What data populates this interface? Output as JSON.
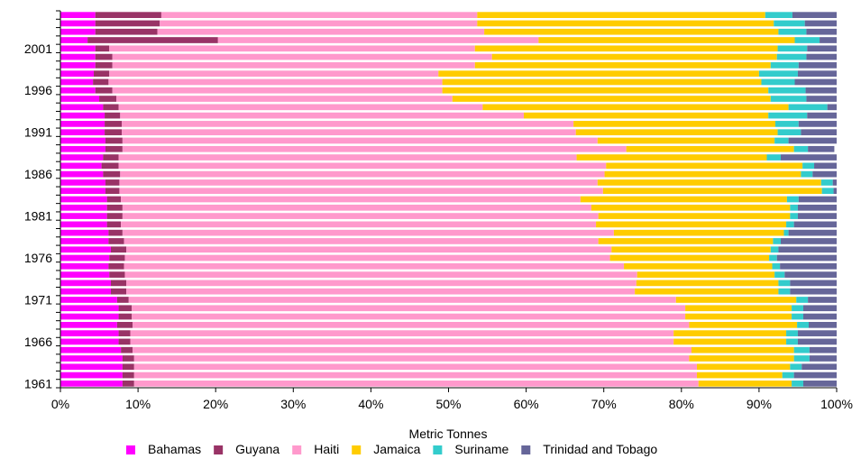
{
  "chart_data": {
    "type": "bar",
    "orientation": "horizontal",
    "stacked": "percent",
    "title": "",
    "xlabel": "Metric Tonnes",
    "ylabel": "",
    "xlim": [
      0,
      100
    ],
    "x_tick_labels": [
      "0%",
      "10%",
      "20%",
      "30%",
      "40%",
      "50%",
      "60%",
      "70%",
      "80%",
      "90%",
      "100%"
    ],
    "y_tick_labels": [
      "1961",
      "1966",
      "1971",
      "1976",
      "1981",
      "1986",
      "1991",
      "1996",
      "2001"
    ],
    "grid": false,
    "legend_position": "bottom",
    "categories": [
      "1961",
      "1962",
      "1963",
      "1964",
      "1965",
      "1966",
      "1967",
      "1968",
      "1969",
      "1970",
      "1971",
      "1972",
      "1973",
      "1974",
      "1975",
      "1976",
      "1977",
      "1978",
      "1979",
      "1980",
      "1981",
      "1982",
      "1983",
      "1984",
      "1985",
      "1986",
      "1987",
      "1988",
      "1989",
      "1990",
      "1991",
      "1992",
      "1993",
      "1994",
      "1995",
      "1996",
      "1997",
      "1998",
      "1999",
      "2000",
      "2001",
      "2002",
      "2003",
      "2004",
      "2005"
    ],
    "series": [
      {
        "name": "Bahamas",
        "color": "#ff00ff",
        "values": [
          8.0,
          8.0,
          8.0,
          8.0,
          7.8,
          7.5,
          7.5,
          7.3,
          7.5,
          7.5,
          7.3,
          6.5,
          6.5,
          6.3,
          6.2,
          6.3,
          6.5,
          6.2,
          6.2,
          6.0,
          6.0,
          6.0,
          6.0,
          5.8,
          5.8,
          5.5,
          5.3,
          5.5,
          5.8,
          5.8,
          5.7,
          5.7,
          5.7,
          5.5,
          5.0,
          4.5,
          4.2,
          4.3,
          4.5,
          4.5,
          4.5,
          3.5,
          4.5,
          4.5,
          4.5
        ]
      },
      {
        "name": "Guyana",
        "color": "#993366",
        "values": [
          1.5,
          1.5,
          1.5,
          1.5,
          1.5,
          1.5,
          1.5,
          2.0,
          1.7,
          1.7,
          1.5,
          2.0,
          2.0,
          2.0,
          2.0,
          2.0,
          2.0,
          2.0,
          1.8,
          1.8,
          2.0,
          2.0,
          1.8,
          1.8,
          1.8,
          2.2,
          2.2,
          2.0,
          2.2,
          2.2,
          2.2,
          2.2,
          2.0,
          2.0,
          2.2,
          2.2,
          2.0,
          2.0,
          2.2,
          2.2,
          1.8,
          16.8,
          8.0,
          8.3,
          8.5
        ]
      },
      {
        "name": "Haiti",
        "color": "#ff99cc",
        "values": [
          72.7,
          72.5,
          72.5,
          71.5,
          72.0,
          70.0,
          70.0,
          71.7,
          71.3,
          71.3,
          70.5,
          65.5,
          65.7,
          66.0,
          64.4,
          62.5,
          62.5,
          61.1,
          63.3,
          61.2,
          61.3,
          60.4,
          59.2,
          62.3,
          61.6,
          62.4,
          62.8,
          59.0,
          64.9,
          61.2,
          58.5,
          58.2,
          52.0,
          46.9,
          43.3,
          42.5,
          43.0,
          42.4,
          46.7,
          48.9,
          47.1,
          41.3,
          42.1,
          40.9,
          40.7
        ]
      },
      {
        "name": "Jamaica",
        "color": "#ffcc00",
        "values": [
          12.0,
          11.0,
          12.0,
          13.5,
          13.2,
          14.5,
          14.5,
          13.9,
          13.7,
          13.7,
          15.5,
          18.5,
          18.3,
          17.7,
          19.1,
          20.5,
          20.5,
          22.5,
          21.9,
          24.5,
          24.7,
          25.6,
          26.6,
          28.2,
          28.8,
          25.3,
          25.3,
          24.5,
          21.6,
          22.8,
          26.0,
          26.0,
          31.5,
          39.4,
          41.0,
          42.0,
          41.1,
          41.3,
          38.1,
          36.7,
          39.0,
          33.0,
          37.9,
          38.2,
          37.1
        ]
      },
      {
        "name": "Suriname",
        "color": "#33cccc",
        "values": [
          1.5,
          1.5,
          1.5,
          2.0,
          2.0,
          1.5,
          1.5,
          1.5,
          1.5,
          1.5,
          1.5,
          1.5,
          1.5,
          1.3,
          1.0,
          1.0,
          1.0,
          1.0,
          0.6,
          1.0,
          1.0,
          1.0,
          1.5,
          1.5,
          1.5,
          1.5,
          1.5,
          1.8,
          1.8,
          1.8,
          3.0,
          3.0,
          5.0,
          5.0,
          4.6,
          4.8,
          4.3,
          5.0,
          3.6,
          3.8,
          3.8,
          3.2,
          3.6,
          4.0,
          3.5
        ]
      },
      {
        "name": "Trinidad and Tobago",
        "color": "#666699",
        "values": [
          4.3,
          5.5,
          4.5,
          3.5,
          3.5,
          5.0,
          5.0,
          3.6,
          4.3,
          4.3,
          3.7,
          6.0,
          6.0,
          6.7,
          7.3,
          7.7,
          7.5,
          7.2,
          6.2,
          5.5,
          5.0,
          5.0,
          4.9,
          0.4,
          0.5,
          3.1,
          2.9,
          7.2,
          3.4,
          6.2,
          4.6,
          4.9,
          3.8,
          1.2,
          3.9,
          4.0,
          5.4,
          5.0,
          4.9,
          3.9,
          3.8,
          2.2,
          3.9,
          4.1,
          5.7
        ]
      }
    ]
  }
}
